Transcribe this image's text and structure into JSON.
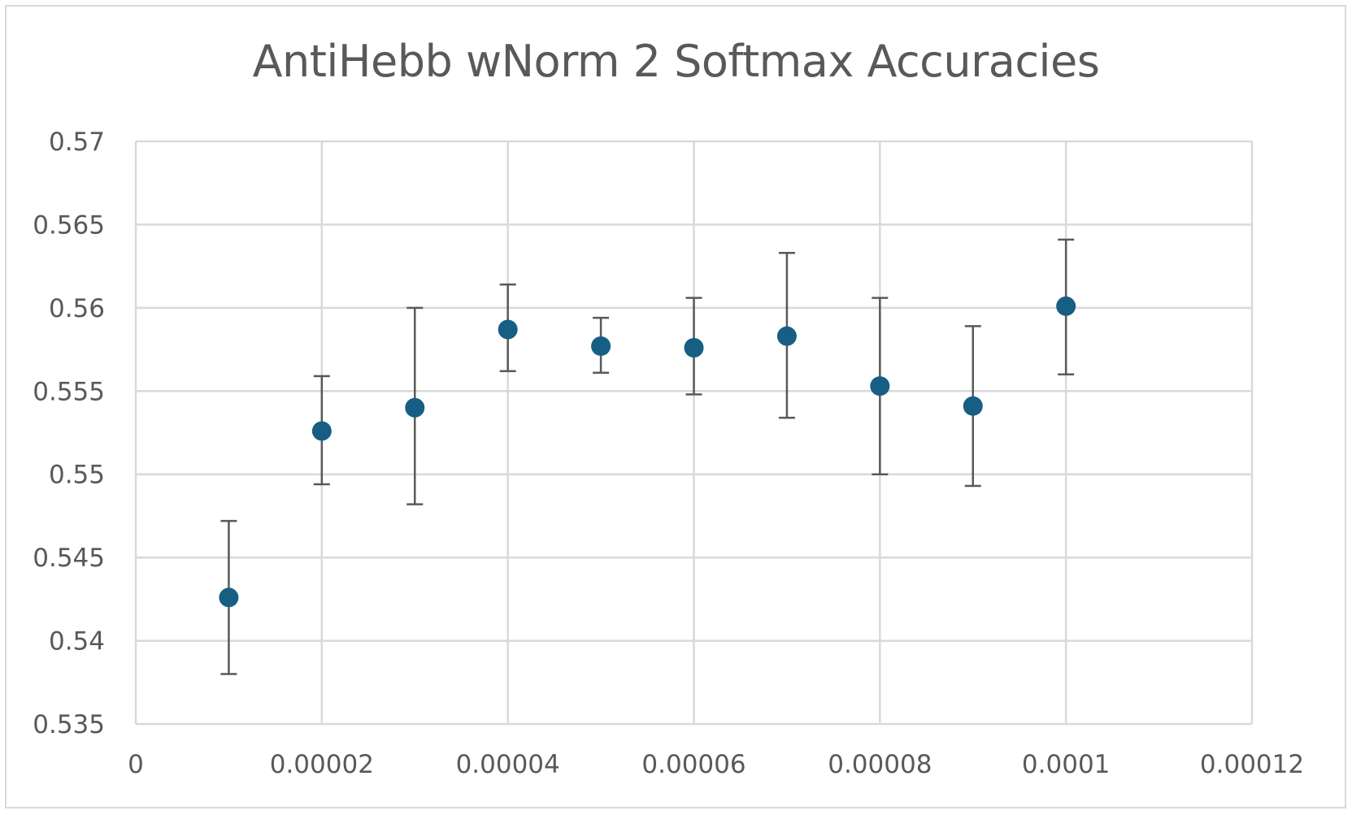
{
  "chart_data": {
    "type": "scatter",
    "title": "AntiHebb wNorm 2 Softmax Accuracies",
    "xlabel": "",
    "ylabel": "",
    "xlim": [
      0,
      0.00012
    ],
    "ylim": [
      0.535,
      0.57
    ],
    "x_ticks": [
      0,
      2e-05,
      4e-05,
      6e-05,
      8e-05,
      0.0001,
      0.00012
    ],
    "x_tick_labels": [
      "0",
      "0.00002",
      "0.00004",
      "0.00006",
      "0.00008",
      "0.0001",
      "0.00012"
    ],
    "y_ticks": [
      0.535,
      0.54,
      0.545,
      0.55,
      0.555,
      0.56,
      0.565,
      0.57
    ],
    "y_tick_labels": [
      "0.535",
      "0.54",
      "0.545",
      "0.55",
      "0.555",
      "0.56",
      "0.565",
      "0.57"
    ],
    "grid": true,
    "legend": "none",
    "marker_color": "#165e83",
    "errorbar_color": "#595959",
    "series": [
      {
        "x": [
          1e-05,
          2e-05,
          3e-05,
          4e-05,
          5e-05,
          6e-05,
          7e-05,
          8e-05,
          9e-05,
          0.0001
        ],
        "y": [
          0.5426,
          0.5526,
          0.554,
          0.5587,
          0.5577,
          0.5576,
          0.5583,
          0.5553,
          0.5541,
          0.5601
        ],
        "y_err_low": [
          0.538,
          0.5494,
          0.5482,
          0.5562,
          0.5561,
          0.5548,
          0.5534,
          0.55,
          0.5493,
          0.556
        ],
        "y_err_high": [
          0.5472,
          0.5559,
          0.56,
          0.5614,
          0.5594,
          0.5606,
          0.5633,
          0.5606,
          0.5589,
          0.5641
        ]
      }
    ]
  }
}
